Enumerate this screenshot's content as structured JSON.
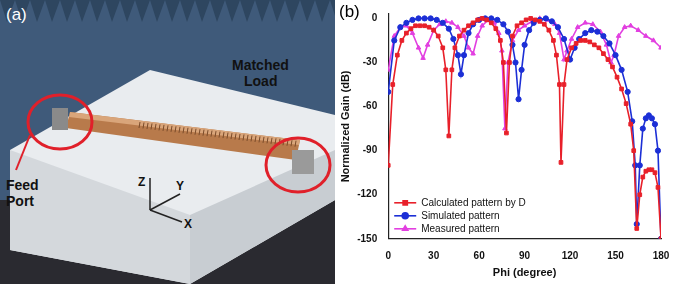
{
  "photo": {
    "panel_label": "(a)",
    "labels": [
      "Matched Load",
      "Feed Port"
    ],
    "axis_labels": [
      "Z",
      "Y",
      "X"
    ]
  },
  "chart_data": {
    "type": "line",
    "panel_label": "(b)",
    "x_label": "Phi (degree)",
    "y_label": "Normalized Gain (dB)",
    "xlim": [
      0,
      180
    ],
    "xticks": [
      0,
      30,
      60,
      90,
      120,
      150,
      180
    ],
    "ylim": [
      -150,
      3
    ],
    "yticks": [
      -150,
      -120,
      -90,
      -60,
      -30,
      0
    ],
    "grid": false,
    "legend": "lower left",
    "series": [
      {
        "name": "Calculated pattern by D",
        "color": "#e8202a",
        "marker": "square",
        "x": [
          0,
          3,
          6,
          9,
          12,
          15,
          18,
          21,
          24,
          27,
          30,
          33,
          36,
          38,
          40,
          42,
          44,
          47,
          50,
          53,
          56,
          59,
          62,
          65,
          68,
          71,
          74,
          76,
          78,
          80,
          82,
          85,
          88,
          91,
          94,
          97,
          100,
          103,
          106,
          109,
          111,
          113,
          114,
          116,
          118,
          121,
          124,
          127,
          130,
          133,
          136,
          139,
          142,
          145,
          148,
          151,
          154,
          157,
          160,
          162,
          164,
          166,
          168,
          170,
          172,
          174,
          176,
          178,
          180
        ],
        "values": [
          -100,
          -45,
          -25,
          -15,
          -10,
          -7,
          -5,
          -5,
          -5,
          -6,
          -8,
          -12,
          -20,
          -35,
          -80,
          -35,
          -20,
          -12,
          -8,
          -5,
          -3,
          -1,
          0,
          -1,
          -3,
          -7,
          -15,
          -30,
          -78,
          -30,
          -12,
          -5,
          -3,
          -1,
          0,
          -1,
          -2,
          -4,
          -8,
          -15,
          -25,
          -45,
          -98,
          -45,
          -28,
          -20,
          -17,
          -15,
          -15,
          -16,
          -18,
          -20,
          -24,
          -28,
          -33,
          -40,
          -48,
          -58,
          -72,
          -90,
          -143,
          -120,
          -108,
          -104,
          -103,
          -103,
          -105,
          -115,
          -150
        ]
      },
      {
        "name": "Simulated pattern",
        "color": "#1c2fd6",
        "marker": "circle",
        "x": [
          0,
          4,
          8,
          12,
          16,
          20,
          24,
          28,
          32,
          36,
          40,
          43,
          46,
          48,
          50,
          53,
          56,
          60,
          64,
          68,
          72,
          76,
          79,
          82,
          84,
          86,
          88,
          90,
          93,
          96,
          100,
          104,
          108,
          112,
          116,
          120,
          123,
          126,
          130,
          134,
          138,
          142,
          146,
          150,
          154,
          158,
          161,
          163,
          164,
          166,
          168,
          170,
          172,
          174,
          176,
          178,
          180
        ],
        "values": [
          -50,
          -15,
          -6,
          -3,
          -1,
          0,
          0,
          0,
          -1,
          -3,
          -7,
          -14,
          -25,
          -38,
          -25,
          -10,
          -4,
          -1,
          0,
          0,
          -1,
          -4,
          -9,
          -18,
          -30,
          -55,
          -35,
          -18,
          -8,
          -3,
          -1,
          0,
          -2,
          -6,
          -14,
          -28,
          -20,
          -14,
          -10,
          -8,
          -9,
          -12,
          -17,
          -25,
          -35,
          -50,
          -70,
          -100,
          -140,
          -100,
          -75,
          -68,
          -66,
          -68,
          -72,
          -90,
          -150
        ]
      },
      {
        "name": "Measured pattern",
        "color": "#e23fe0",
        "marker": "triangle",
        "x": [
          0,
          4,
          8,
          12,
          16,
          20,
          23,
          26,
          30,
          34,
          38,
          42,
          46,
          50,
          53,
          56,
          59,
          62,
          66,
          70,
          73,
          75,
          77,
          79,
          82,
          86,
          90,
          95,
          100,
          105,
          110,
          113,
          116,
          118,
          121,
          125,
          130,
          135,
          140,
          144,
          147,
          149,
          152,
          156,
          160,
          165,
          170,
          175,
          180
        ],
        "values": [
          -35,
          -12,
          -6,
          -5,
          -10,
          -20,
          -27,
          -18,
          -8,
          -4,
          -2,
          -3,
          -6,
          -12,
          -20,
          -24,
          -12,
          -5,
          -1,
          -3,
          -10,
          -22,
          -75,
          -30,
          -15,
          -8,
          -5,
          -2,
          0,
          -1,
          -4,
          -10,
          -28,
          -22,
          -14,
          -6,
          -3,
          -4,
          -9,
          -18,
          -30,
          -25,
          -12,
          -6,
          -5,
          -8,
          -12,
          -15,
          -20
        ]
      }
    ]
  }
}
